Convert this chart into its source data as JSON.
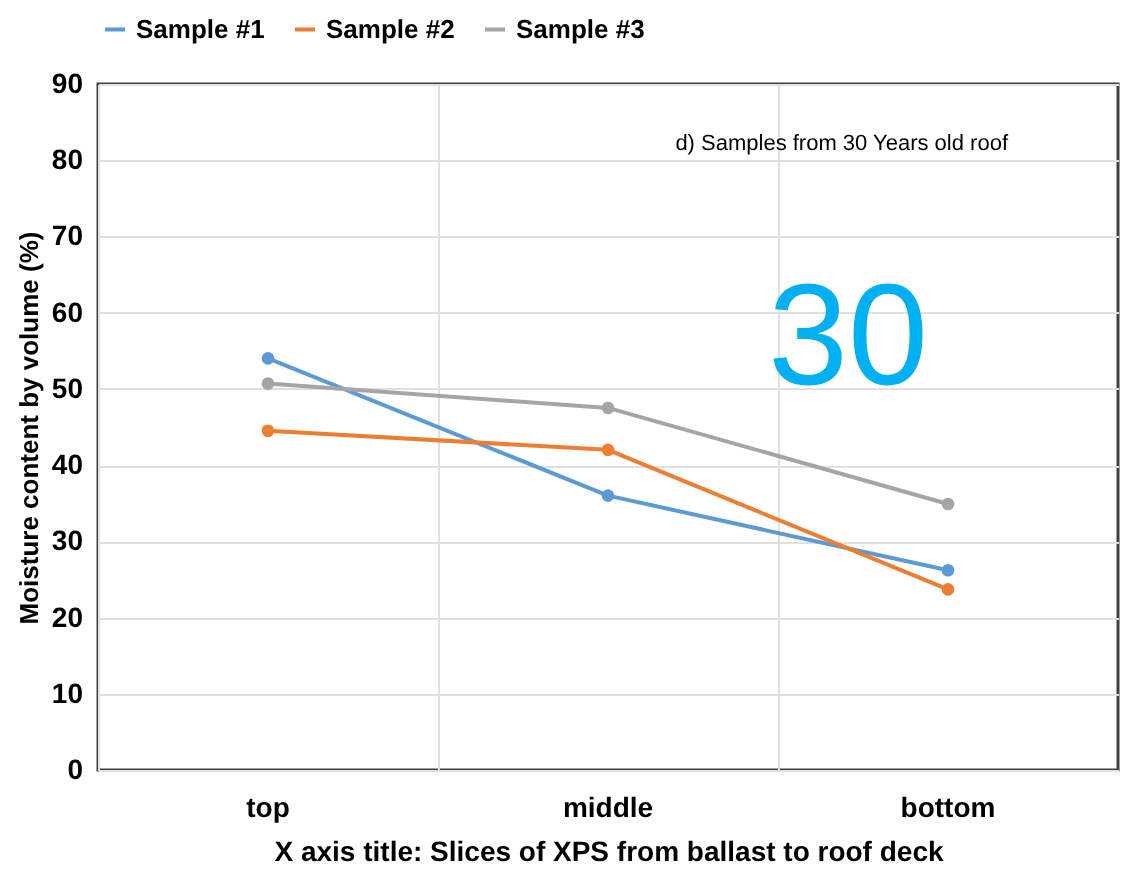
{
  "chart_data": {
    "type": "line",
    "xlabel": "X axis title: Slices of XPS from ballast to roof deck",
    "ylabel": "Moisture content by volume (%)",
    "categories": [
      "top",
      "middle",
      "bottom"
    ],
    "series": [
      {
        "name": "Sample #1",
        "color": "#5b9bd5",
        "values": [
          54,
          36,
          26.2
        ]
      },
      {
        "name": "Sample #2",
        "color": "#ed7d31",
        "values": [
          44.5,
          42,
          23.7
        ]
      },
      {
        "name": "Sample #3",
        "color": "#a5a5a5",
        "values": [
          50.7,
          47.5,
          34.9
        ]
      }
    ],
    "ylim": [
      0,
      90
    ],
    "yticks": [
      0,
      10,
      20,
      30,
      40,
      50,
      60,
      70,
      80,
      90
    ],
    "grid": true,
    "legend": "top",
    "marker": "circle",
    "line_style": "solid",
    "annotations": [
      "d) Samples from 30 Years old roof",
      "30"
    ]
  }
}
